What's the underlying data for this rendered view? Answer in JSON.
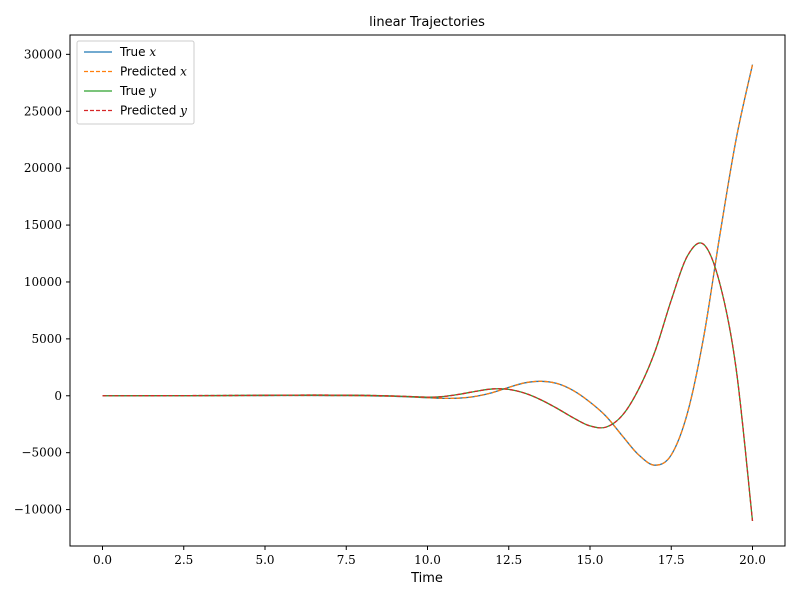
{
  "chart_data": {
    "type": "line",
    "title": "linear Trajectories",
    "xlabel": "Time",
    "ylabel": "",
    "xlim": [
      -1.0,
      21.0
    ],
    "ylim": [
      -13200,
      31700
    ],
    "xticks": [
      0.0,
      2.5,
      5.0,
      7.5,
      10.0,
      12.5,
      15.0,
      17.5,
      20.0
    ],
    "xtick_labels": [
      "0.0",
      "2.5",
      "5.0",
      "7.5",
      "10.0",
      "12.5",
      "15.0",
      "17.5",
      "20.0"
    ],
    "yticks": [
      -10000,
      -5000,
      0,
      5000,
      10000,
      15000,
      20000,
      25000,
      30000
    ],
    "ytick_labels": [
      "−10000",
      "−5000",
      "0",
      "5000",
      "10000",
      "15000",
      "20000",
      "25000",
      "30000"
    ],
    "grid": false,
    "legend_position": "top-left",
    "series": [
      {
        "name": "True x",
        "legend_text": "True ",
        "legend_var": "x",
        "color": "#1f77b4",
        "style": "solid",
        "x": [
          0,
          2,
          4,
          5,
          6,
          7,
          8,
          9,
          10,
          10.5,
          11,
          11.5,
          12,
          12.5,
          13,
          13.5,
          14,
          14.5,
          15,
          15.5,
          16,
          16.5,
          17,
          17.5,
          18,
          18.5,
          19,
          19.5,
          20
        ],
        "y": [
          0,
          0,
          10,
          20,
          30,
          20,
          0,
          -50,
          -170,
          -230,
          -200,
          -40,
          280,
          740,
          1140,
          1270,
          1070,
          440,
          -560,
          -1820,
          -3540,
          -5200,
          -6100,
          -5200,
          -1500,
          5200,
          14200,
          22600,
          29100
        ]
      },
      {
        "name": "Predicted x",
        "legend_text": "Predicted ",
        "legend_var": "x",
        "color": "#ff7f0e",
        "style": "dashed",
        "x": [
          0,
          2,
          4,
          5,
          6,
          7,
          8,
          9,
          10,
          10.5,
          11,
          11.5,
          12,
          12.5,
          13,
          13.5,
          14,
          14.5,
          15,
          15.5,
          16,
          16.5,
          17,
          17.5,
          18,
          18.5,
          19,
          19.5,
          20
        ],
        "y": [
          0,
          0,
          10,
          20,
          30,
          20,
          0,
          -50,
          -170,
          -230,
          -200,
          -40,
          280,
          740,
          1140,
          1270,
          1070,
          440,
          -560,
          -1820,
          -3540,
          -5200,
          -6100,
          -5200,
          -1500,
          5200,
          14200,
          22600,
          29100
        ]
      },
      {
        "name": "True y",
        "legend_text": "True ",
        "legend_var": "y",
        "color": "#2ca02c",
        "style": "solid",
        "x": [
          0,
          2,
          4,
          5,
          6,
          7,
          8,
          9,
          10,
          10.5,
          11,
          11.5,
          12,
          12.5,
          13,
          13.5,
          14,
          14.5,
          15,
          15.5,
          16,
          16.5,
          17,
          17.5,
          18,
          18.5,
          19,
          19.5,
          20
        ],
        "y": [
          0,
          10,
          30,
          50,
          60,
          60,
          40,
          -20,
          -120,
          -60,
          140,
          400,
          600,
          560,
          220,
          -370,
          -1130,
          -1960,
          -2650,
          -2750,
          -1700,
          600,
          3900,
          8400,
          12300,
          13300,
          9800,
          2300,
          -11000
        ]
      },
      {
        "name": "Predicted y",
        "legend_text": "Predicted ",
        "legend_var": "y",
        "color": "#d62728",
        "style": "dashed",
        "x": [
          0,
          2,
          4,
          5,
          6,
          7,
          8,
          9,
          10,
          10.5,
          11,
          11.5,
          12,
          12.5,
          13,
          13.5,
          14,
          14.5,
          15,
          15.5,
          16,
          16.5,
          17,
          17.5,
          18,
          18.5,
          19,
          19.5,
          20
        ],
        "y": [
          0,
          10,
          30,
          50,
          60,
          60,
          40,
          -20,
          -120,
          -60,
          140,
          400,
          600,
          560,
          220,
          -370,
          -1130,
          -1960,
          -2650,
          -2750,
          -1700,
          600,
          3900,
          8400,
          12300,
          13300,
          9800,
          2300,
          -11000
        ]
      }
    ]
  }
}
